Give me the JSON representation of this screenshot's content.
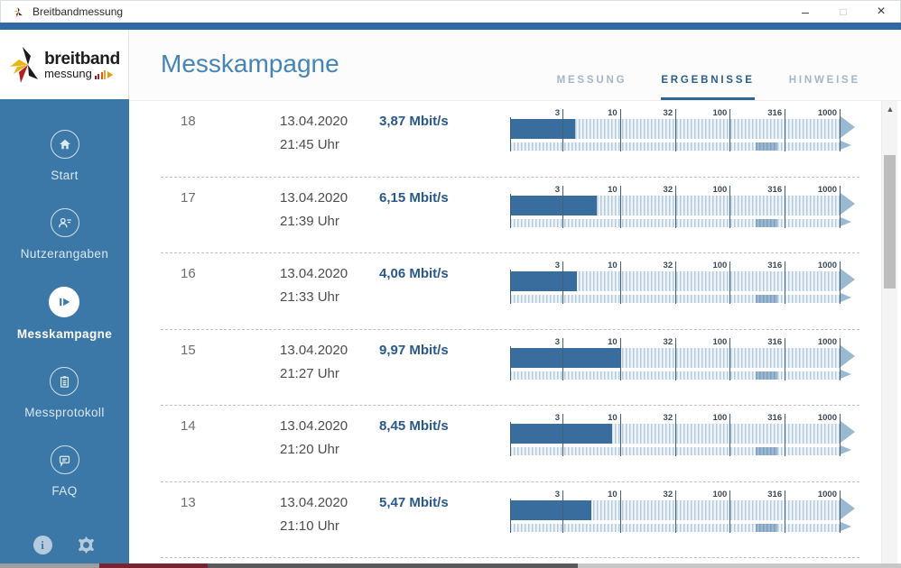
{
  "window": {
    "title": "Breitbandmessung",
    "controls": {
      "minimize": "–",
      "maximize": "□",
      "close": "×"
    }
  },
  "sidebar": {
    "logo": {
      "line1": "breitband",
      "line2": "messung"
    },
    "items": [
      {
        "label": "Start",
        "icon": "home-icon",
        "active": false
      },
      {
        "label": "Nutzerangaben",
        "icon": "user-icon",
        "active": false
      },
      {
        "label": "Messkampagne",
        "icon": "play-icon",
        "active": true
      },
      {
        "label": "Messprotokoll",
        "icon": "clipboard-icon",
        "active": false
      },
      {
        "label": "FAQ",
        "icon": "chat-icon",
        "active": false
      }
    ],
    "footer": {
      "info_label": "i"
    }
  },
  "header": {
    "title": "Messkampagne",
    "tabs": [
      {
        "label": "MESSUNG",
        "active": false
      },
      {
        "label": "ERGEBNISSE",
        "active": true
      },
      {
        "label": "HINWEISE",
        "active": false
      }
    ]
  },
  "results": {
    "scale_ticks_mbit": [
      3,
      10,
      32,
      100,
      316,
      1000
    ],
    "scale_min_mbit": 1,
    "scale_max_mbit": 1000,
    "marker_range_mbit": [
      172,
      270
    ],
    "rows": [
      {
        "number": "18",
        "date": "13.04.2020",
        "time": "21:45 Uhr",
        "download_label": "3,87 Mbit/s",
        "download_mbit": 3.87
      },
      {
        "number": "17",
        "date": "13.04.2020",
        "time": "21:39 Uhr",
        "download_label": "6,15 Mbit/s",
        "download_mbit": 6.15
      },
      {
        "number": "16",
        "date": "13.04.2020",
        "time": "21:33 Uhr",
        "download_label": "4,06 Mbit/s",
        "download_mbit": 4.06
      },
      {
        "number": "15",
        "date": "13.04.2020",
        "time": "21:27 Uhr",
        "download_label": "9,97 Mbit/s",
        "download_mbit": 9.97
      },
      {
        "number": "14",
        "date": "13.04.2020",
        "time": "21:20 Uhr",
        "download_label": "8,45 Mbit/s",
        "download_mbit": 8.45
      },
      {
        "number": "13",
        "date": "13.04.2020",
        "time": "21:10 Uhr",
        "download_label": "5,47 Mbit/s",
        "download_mbit": 5.47
      }
    ]
  },
  "colors": {
    "sidebar_blue": "#3c78a7",
    "top_strip_blue": "#2f6ba2",
    "title_blue": "#4585b5",
    "active_tab_blue": "#2b5e8a",
    "speed_text_blue": "#29588c",
    "gauge_fill_blue": "#386d9e",
    "gauge_hatch_blue": "#b3cbdf",
    "taskbar_red": "#7b2130"
  }
}
